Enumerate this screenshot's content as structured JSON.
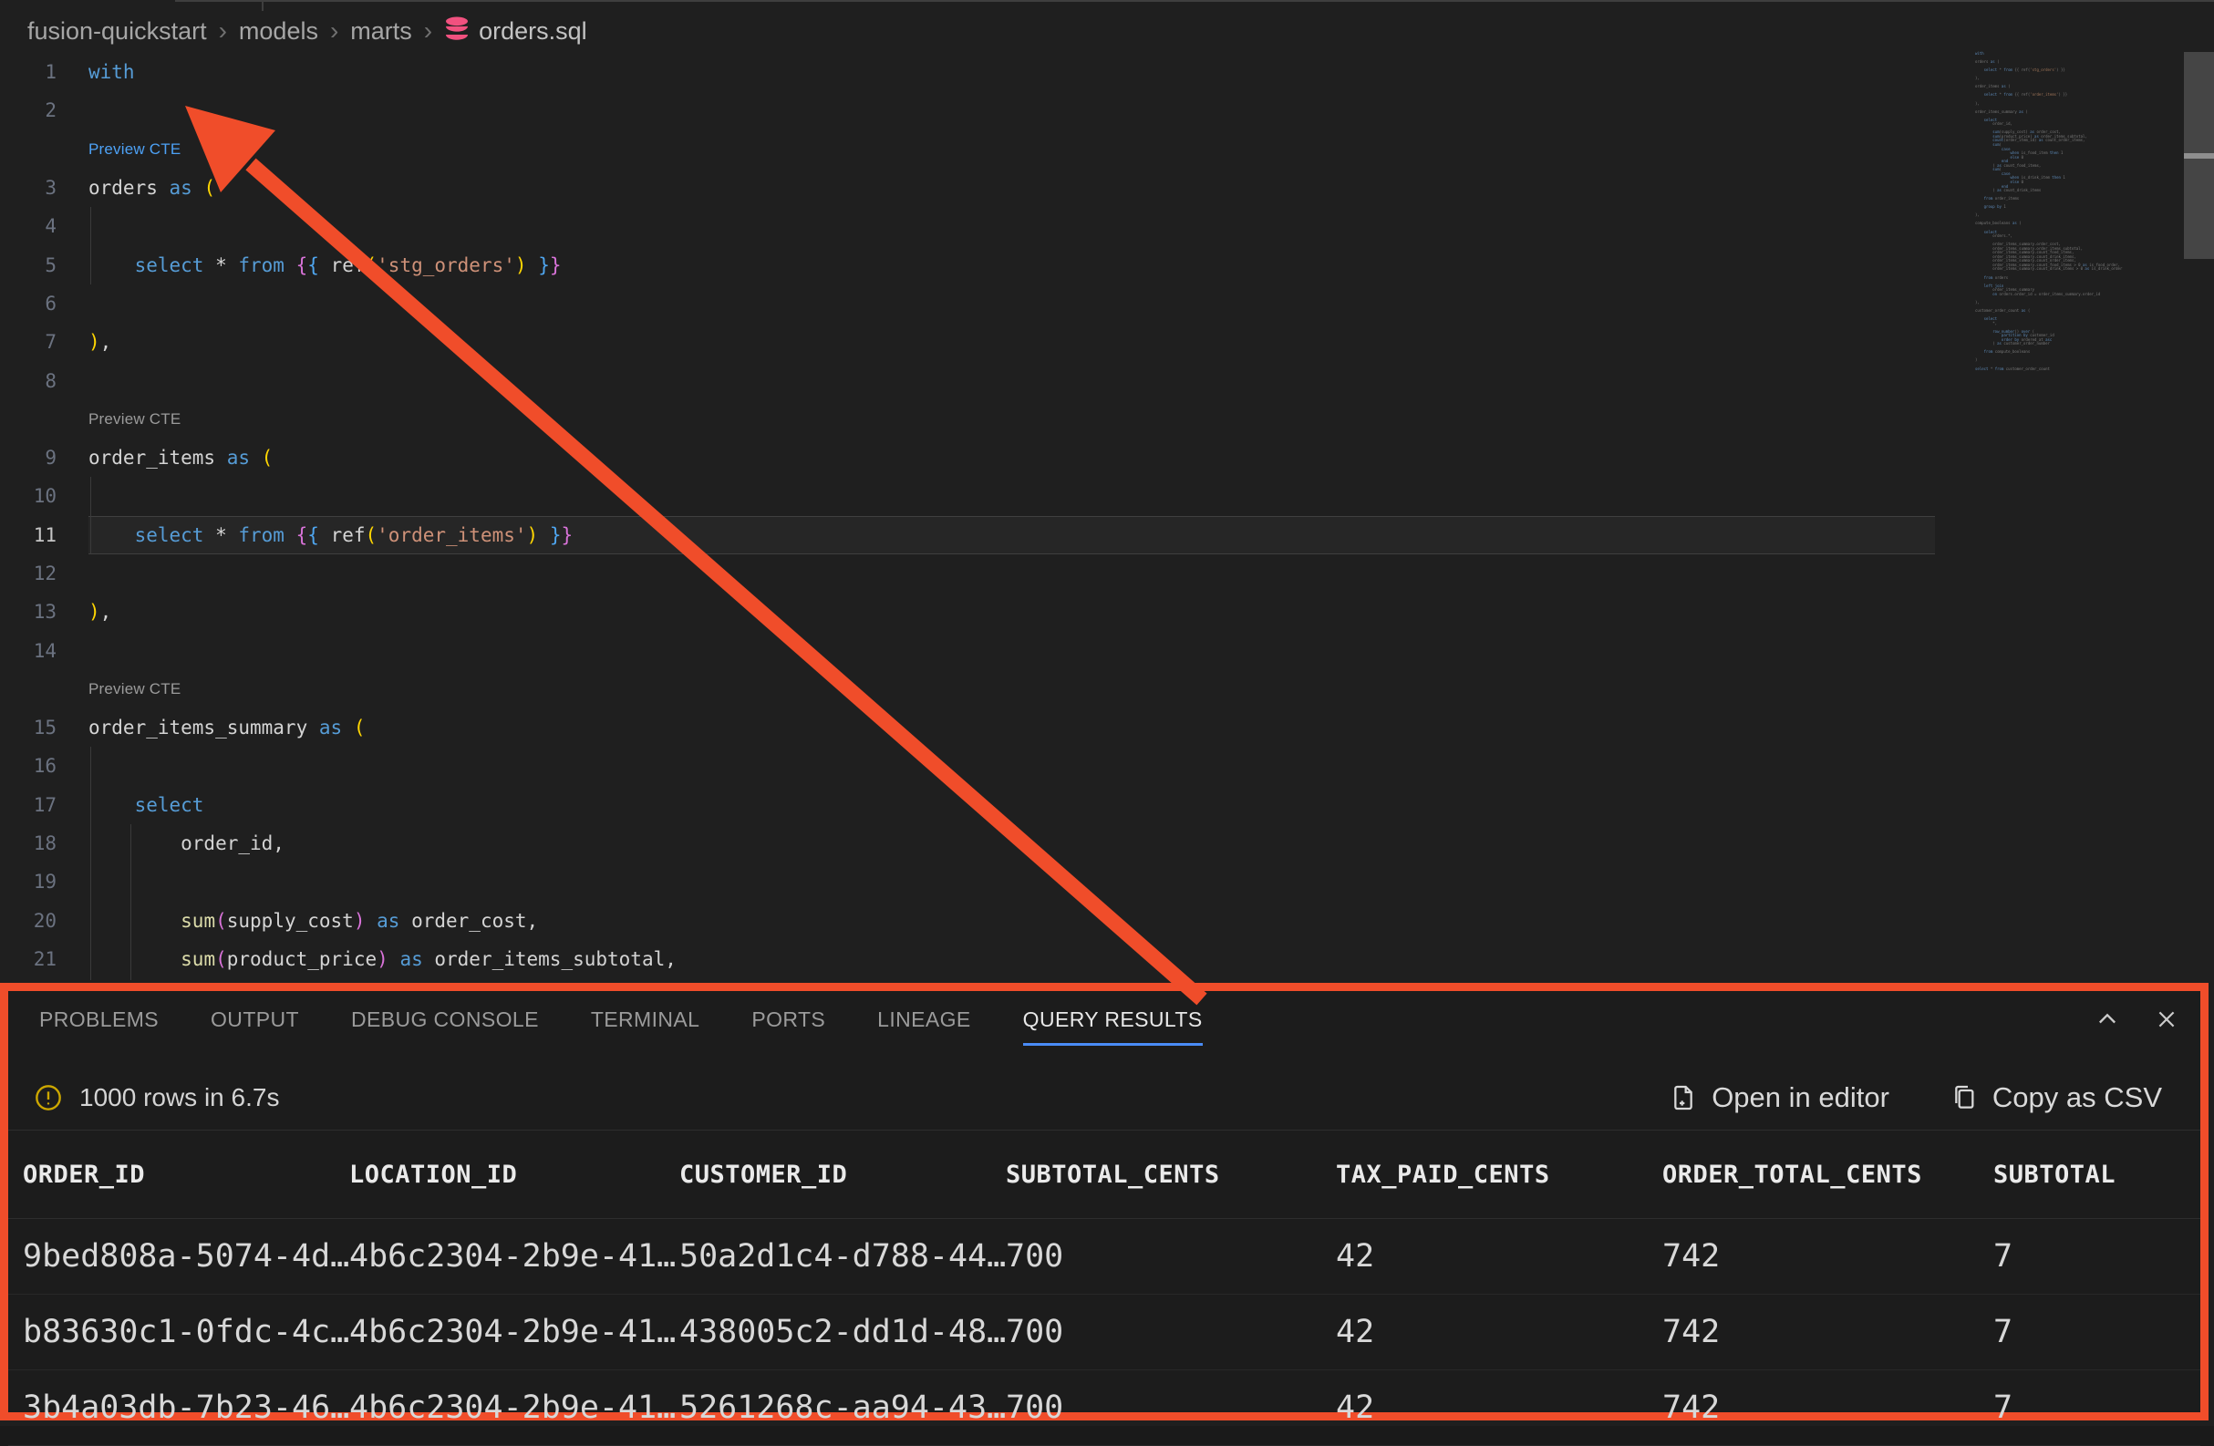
{
  "colors": {
    "annotation_orange": "#f04d2a",
    "tab_accent_blue": "#4a8cf7",
    "warning_yellow": "#cca700",
    "file_icon_pink": "#f1517f",
    "codelens_link_blue": "#4da1f5"
  },
  "breadcrumb": {
    "separator": "›",
    "path": [
      "fusion-quickstart",
      "models",
      "marts"
    ],
    "file": "orders.sql"
  },
  "editor": {
    "code_lens_label": "Preview CTE",
    "rows": [
      {
        "kind": "code",
        "num": "1",
        "tokens": [
          [
            "kw",
            "with"
          ]
        ]
      },
      {
        "kind": "code",
        "num": "2",
        "tokens": []
      },
      {
        "kind": "lens",
        "style": "link"
      },
      {
        "kind": "code",
        "num": "3",
        "tokens": [
          [
            "id",
            "orders "
          ],
          [
            "kw",
            "as"
          ],
          [
            "id",
            " "
          ],
          [
            "b1",
            "("
          ]
        ]
      },
      {
        "kind": "code",
        "num": "4",
        "tokens": []
      },
      {
        "kind": "code",
        "num": "5",
        "tokens": [
          [
            "id",
            "    "
          ],
          [
            "kw",
            "select"
          ],
          [
            "id",
            " * "
          ],
          [
            "kw",
            "from"
          ],
          [
            "id",
            " "
          ],
          [
            "b2",
            "{"
          ],
          [
            "b3",
            "{"
          ],
          [
            "id",
            " ref"
          ],
          [
            "b1",
            "("
          ],
          [
            "str",
            "'stg_orders'"
          ],
          [
            "b1",
            ")"
          ],
          [
            "id",
            " "
          ],
          [
            "b3",
            "}"
          ],
          [
            "b2",
            "}"
          ]
        ]
      },
      {
        "kind": "code",
        "num": "6",
        "tokens": []
      },
      {
        "kind": "code",
        "num": "7",
        "tokens": [
          [
            "b1",
            ")"
          ],
          [
            "id",
            ","
          ]
        ]
      },
      {
        "kind": "code",
        "num": "8",
        "tokens": []
      },
      {
        "kind": "lens",
        "style": "plain"
      },
      {
        "kind": "code",
        "num": "9",
        "tokens": [
          [
            "id",
            "order_items "
          ],
          [
            "kw",
            "as"
          ],
          [
            "id",
            " "
          ],
          [
            "b1",
            "("
          ]
        ]
      },
      {
        "kind": "code",
        "num": "10",
        "tokens": []
      },
      {
        "kind": "code",
        "num": "11",
        "current": true,
        "tokens": [
          [
            "id",
            "    "
          ],
          [
            "kw",
            "select"
          ],
          [
            "id",
            " * "
          ],
          [
            "kw",
            "from"
          ],
          [
            "id",
            " "
          ],
          [
            "b2",
            "{"
          ],
          [
            "b3",
            "{"
          ],
          [
            "id",
            " ref"
          ],
          [
            "b1",
            "("
          ],
          [
            "str",
            "'order_items'"
          ],
          [
            "b1",
            ")"
          ],
          [
            "id",
            " "
          ],
          [
            "b3",
            "}"
          ],
          [
            "b2",
            "}"
          ]
        ]
      },
      {
        "kind": "code",
        "num": "12",
        "tokens": []
      },
      {
        "kind": "code",
        "num": "13",
        "tokens": [
          [
            "b1",
            ")"
          ],
          [
            "id",
            ","
          ]
        ]
      },
      {
        "kind": "code",
        "num": "14",
        "tokens": []
      },
      {
        "kind": "lens",
        "style": "plain"
      },
      {
        "kind": "code",
        "num": "15",
        "tokens": [
          [
            "id",
            "order_items_summary "
          ],
          [
            "kw",
            "as"
          ],
          [
            "id",
            " "
          ],
          [
            "b1",
            "("
          ]
        ]
      },
      {
        "kind": "code",
        "num": "16",
        "tokens": []
      },
      {
        "kind": "code",
        "num": "17",
        "tokens": [
          [
            "id",
            "    "
          ],
          [
            "kw",
            "select"
          ]
        ]
      },
      {
        "kind": "code",
        "num": "18",
        "tokens": [
          [
            "id",
            "        order_id,"
          ]
        ]
      },
      {
        "kind": "code",
        "num": "19",
        "tokens": []
      },
      {
        "kind": "code",
        "num": "20",
        "tokens": [
          [
            "id",
            "        "
          ],
          [
            "fn",
            "sum"
          ],
          [
            "b2",
            "("
          ],
          [
            "id",
            "supply_cost"
          ],
          [
            "b2",
            ")"
          ],
          [
            "id",
            " "
          ],
          [
            "kw",
            "as"
          ],
          [
            "id",
            " order_cost,"
          ]
        ]
      },
      {
        "kind": "code",
        "num": "21",
        "tokens": [
          [
            "id",
            "        "
          ],
          [
            "fn",
            "sum"
          ],
          [
            "b2",
            "("
          ],
          [
            "id",
            "product_price"
          ],
          [
            "b2",
            ")"
          ],
          [
            "id",
            " "
          ],
          [
            "kw",
            "as"
          ],
          [
            "id",
            " order_items_subtotal,"
          ]
        ]
      }
    ],
    "minimap_lines": [
      "with",
      "",
      "orders as (",
      "",
      "    select * from {{ ref('stg_orders') }}",
      "",
      "),",
      "",
      "order_items as (",
      "",
      "    select * from {{ ref('order_items') }}",
      "",
      "),",
      "",
      "order_items_summary as (",
      "",
      "    select",
      "        order_id,",
      "",
      "        sum(supply_cost) as order_cost,",
      "        sum(product_price) as order_items_subtotal,",
      "        count(order_item_id) as count_order_items,",
      "        sum(",
      "            case",
      "                when is_food_item then 1",
      "                else 0",
      "            end",
      "        ) as count_food_items,",
      "        sum(",
      "            case",
      "                when is_drink_item then 1",
      "                else 0",
      "            end",
      "        ) as count_drink_items",
      "",
      "    from order_items",
      "",
      "    group by 1",
      "",
      "),",
      "",
      "compute_booleans as (",
      "",
      "    select",
      "        orders.*,",
      "",
      "        order_items_summary.order_cost,",
      "        order_items_summary.order_items_subtotal,",
      "        order_items_summary.count_food_items,",
      "        order_items_summary.count_drink_items,",
      "        order_items_summary.count_order_items,",
      "        order_items_summary.count_food_items > 0 as is_food_order,",
      "        order_items_summary.count_drink_items > 0 as is_drink_order",
      "",
      "    from orders",
      "",
      "    left join",
      "        order_items_summary",
      "        on orders.order_id = order_items_summary.order_id",
      "",
      "),",
      "",
      "customer_order_count as (",
      "",
      "    select",
      "        *,",
      "",
      "        row_number() over (",
      "            partition by customer_id",
      "            order by ordered_at asc",
      "        ) as customer_order_number",
      "",
      "    from compute_booleans",
      "",
      ")",
      "",
      "select * from customer_order_count"
    ]
  },
  "panel": {
    "tabs": [
      {
        "label": "PROBLEMS"
      },
      {
        "label": "OUTPUT"
      },
      {
        "label": "DEBUG CONSOLE"
      },
      {
        "label": "TERMINAL"
      },
      {
        "label": "PORTS"
      },
      {
        "label": "LINEAGE"
      },
      {
        "label": "QUERY RESULTS",
        "active": true
      }
    ],
    "status": {
      "text": "1000 rows in 6.7s"
    },
    "actions": [
      {
        "label": "Open in editor",
        "icon": "new-file-icon"
      },
      {
        "label": "Copy as CSV",
        "icon": "copy-icon"
      }
    ],
    "table": {
      "columns": [
        "ORDER_ID",
        "LOCATION_ID",
        "CUSTOMER_ID",
        "SUBTOTAL_CENTS",
        "TAX_PAID_CENTS",
        "ORDER_TOTAL_CENTS",
        "SUBTOTAL"
      ],
      "rows": [
        [
          "9bed808a-5074-4d…",
          "4b6c2304-2b9e-41…",
          "50a2d1c4-d788-44…",
          "700",
          "42",
          "742",
          "7"
        ],
        [
          "b83630c1-0fdc-4c…",
          "4b6c2304-2b9e-41…",
          "438005c2-dd1d-48…",
          "700",
          "42",
          "742",
          "7"
        ],
        [
          "3b4a03db-7b23-46…",
          "4b6c2304-2b9e-41…",
          "5261268c-aa94-43…",
          "700",
          "42",
          "742",
          "7"
        ]
      ]
    }
  }
}
